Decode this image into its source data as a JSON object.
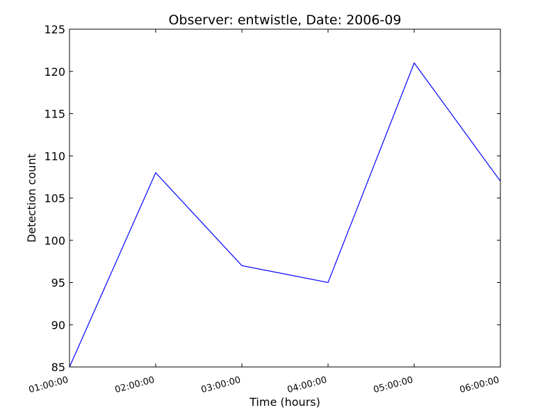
{
  "chart_data": {
    "type": "line",
    "title": "Observer: entwistle, Date: 2006-09",
    "xlabel": "Time (hours)",
    "ylabel": "Detection count",
    "x": [
      "01:00:00",
      "02:00:00",
      "03:00:00",
      "04:00:00",
      "05:00:00",
      "06:00:00"
    ],
    "y_ticks": [
      85,
      90,
      95,
      100,
      105,
      110,
      115,
      120,
      125
    ],
    "ylim": [
      85,
      125
    ],
    "grid": false,
    "series": [
      {
        "values": [
          85,
          108,
          97,
          95,
          121,
          107
        ],
        "color": "#0000ff"
      }
    ]
  }
}
